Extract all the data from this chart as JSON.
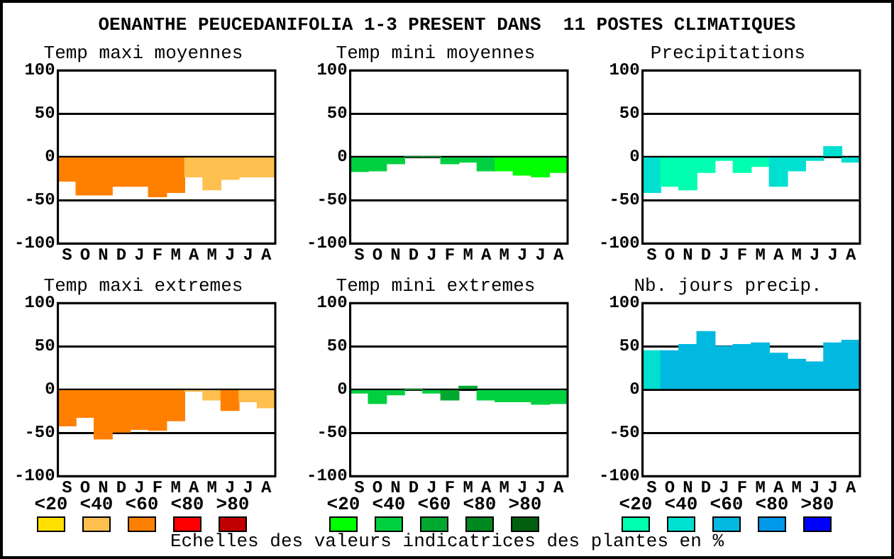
{
  "chart_data": [
    {
      "type": "other",
      "title": "OENANTHE PEUCEDANIFOLIA 1-3 PRESENT DANS  11 POSTES CLIMATIQUES",
      "categories": [
        "<20",
        "<40",
        "<60",
        "<80",
        ">80"
      ],
      "annotations": [
        "Echelles des valeurs indicatrices des plantes en %"
      ]
    },
    {
      "type": "bar",
      "title": "Temp maxi moyennes",
      "categories": [
        "S",
        "O",
        "N",
        "D",
        "J",
        "F",
        "M",
        "A",
        "M",
        "J",
        "J",
        "A"
      ],
      "values": [
        -28,
        -44,
        -44,
        -34,
        -34,
        -46,
        -41,
        -23,
        -38,
        -26,
        -23,
        -23
      ],
      "colors": [
        "#ff8000",
        "#ff8000",
        "#ff8000",
        "#ff8000",
        "#ff8000",
        "#ff8000",
        "#ff8000",
        "#ffc050",
        "#ffc050",
        "#ffc050",
        "#ffc050",
        "#ffc050"
      ],
      "ylim": [
        -100,
        100
      ],
      "yticks": [
        -100,
        -50,
        0,
        50,
        100
      ],
      "grid": "y"
    },
    {
      "type": "bar",
      "title": "Temp mini moyennes",
      "categories": [
        "S",
        "O",
        "N",
        "D",
        "J",
        "F",
        "M",
        "A",
        "M",
        "J",
        "J",
        "A"
      ],
      "values": [
        -17,
        -16,
        -8,
        0,
        0,
        -8,
        -6,
        -16,
        -16,
        -21,
        -23,
        -18
      ],
      "colors": [
        "#00d040",
        "#00d040",
        "#00d040",
        "#00d040",
        "#00d040",
        "#00d040",
        "#00d040",
        "#00d040",
        "#00ff00",
        "#00ff00",
        "#00ff00",
        "#00ff00"
      ],
      "ylim": [
        -100,
        100
      ],
      "yticks": [
        -100,
        -50,
        0,
        50,
        100
      ],
      "grid": "y"
    },
    {
      "type": "bar",
      "title": "Precipitations",
      "categories": [
        "S",
        "O",
        "N",
        "D",
        "J",
        "F",
        "M",
        "A",
        "M",
        "J",
        "J",
        "A"
      ],
      "values": [
        -41,
        -34,
        -38,
        -18,
        -4,
        -18,
        -11,
        -34,
        -16,
        -4,
        12,
        -6
      ],
      "colors": [
        "#00e0d0",
        "#00ffb0",
        "#00ffb0",
        "#00ffb0",
        "#00ffb0",
        "#00ffb0",
        "#00ffb0",
        "#00e0d0",
        "#00e0d0",
        "#00e0d0",
        "#00e0d0",
        "#00e0d0"
      ],
      "ylim": [
        -100,
        100
      ],
      "yticks": [
        -100,
        -50,
        0,
        50,
        100
      ],
      "grid": "y"
    },
    {
      "type": "bar",
      "title": "Temp maxi extremes",
      "categories": [
        "S",
        "O",
        "N",
        "D",
        "J",
        "F",
        "M",
        "A",
        "M",
        "J",
        "J",
        "A"
      ],
      "values": [
        -42,
        -32,
        -57,
        -49,
        -46,
        -47,
        -36,
        -2,
        -12,
        -24,
        -14,
        -21
      ],
      "colors": [
        "#ff8000",
        "#ff8000",
        "#ff8000",
        "#ff8000",
        "#ff8000",
        "#ff8000",
        "#ff8000",
        "#ffc050",
        "#ffc050",
        "#ff8000",
        "#ffc050",
        "#ffc050"
      ],
      "ylim": [
        -100,
        100
      ],
      "yticks": [
        -100,
        -50,
        0,
        50,
        100
      ],
      "grid": "y"
    },
    {
      "type": "bar",
      "title": "Temp mini extremes",
      "categories": [
        "S",
        "O",
        "N",
        "D",
        "J",
        "F",
        "M",
        "A",
        "M",
        "J",
        "J",
        "A"
      ],
      "values": [
        -4,
        -16,
        -6,
        0,
        -4,
        -12,
        4,
        -12,
        -14,
        -14,
        -17,
        -16
      ],
      "colors": [
        "#00d040",
        "#00d040",
        "#00d040",
        "#00d040",
        "#00d040",
        "#00a830",
        "#00a830",
        "#00d040",
        "#00d040",
        "#00d040",
        "#00d040",
        "#00d040"
      ],
      "ylim": [
        -100,
        100
      ],
      "yticks": [
        -100,
        -50,
        0,
        50,
        100
      ],
      "grid": "y"
    },
    {
      "type": "bar",
      "title": "Nb. jours precip.",
      "categories": [
        "S",
        "O",
        "N",
        "D",
        "J",
        "F",
        "M",
        "A",
        "M",
        "J",
        "J",
        "A"
      ],
      "values": [
        45,
        45,
        52,
        67,
        50,
        52,
        54,
        42,
        35,
        32,
        54,
        57
      ],
      "colors": [
        "#00e0d0",
        "#00b8e0",
        "#00b8e0",
        "#00b8e0",
        "#00b8e0",
        "#00b8e0",
        "#00b8e0",
        "#00b8e0",
        "#00b8e0",
        "#00b8e0",
        "#00b8e0",
        "#00b8e0"
      ],
      "ylim": [
        -100,
        100
      ],
      "yticks": [
        -100,
        -50,
        0,
        50,
        100
      ],
      "grid": "y"
    }
  ]
}
